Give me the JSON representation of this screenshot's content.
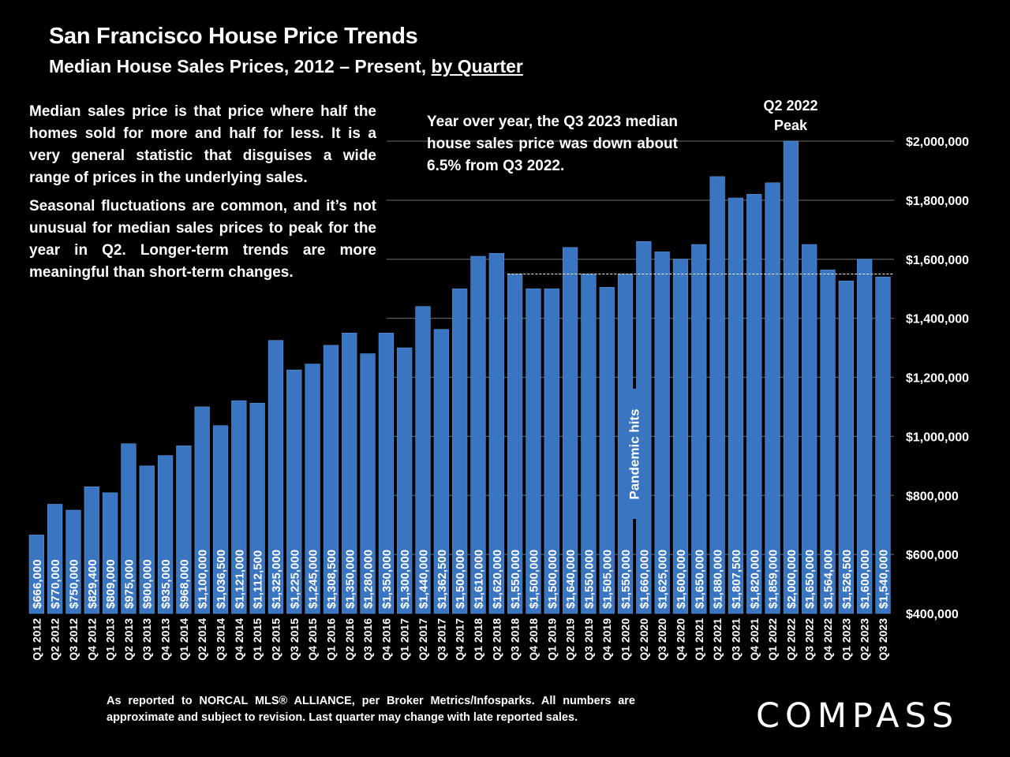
{
  "title": "San Francisco House Price Trends",
  "subtitle": {
    "main": "Median House Sales Prices, 2012 – Present, ",
    "link": "by Quarter"
  },
  "notes": {
    "definition": "Median sales price is that price where half the homes sold for more and half for less. It is a very general statistic that disguises a wide range of prices in the underlying sales.",
    "seasonal": "Seasonal fluctuations are common, and it’s not unusual for median sales prices to peak for the year in Q2. Longer-term trends are more meaningful than short-term changes.",
    "yoy": "Year over year, the Q3 2023 median house sales price was down about 6.5% from Q3 2022."
  },
  "annotations": {
    "peak_line1": "Q2 2022",
    "peak_line2": "Peak",
    "pandemic": "Pandemic hits"
  },
  "footnote": "As reported to NORCAL MLS® ALLIANCE, per Broker Metrics/Infosparks. All numbers are approximate and subject to revision. Last quarter may change with late reported sales.",
  "brand": "COMPASS",
  "colors": {
    "background": "#000000",
    "bar": "#3a75c2",
    "bar_edge": "#5b93d8",
    "grid": "#5a5a5a",
    "reference_line": "#ffffff",
    "text": "#ffffff"
  },
  "chart_data": {
    "type": "bar",
    "title": "San Francisco House Price Trends",
    "subtitle": "Median House Sales Prices, 2012 – Present, by Quarter",
    "xlabel": "",
    "ylabel": "",
    "ylim": [
      400000,
      2000000
    ],
    "yticks": [
      400000,
      600000,
      800000,
      1000000,
      1200000,
      1400000,
      1600000,
      1800000,
      2000000
    ],
    "ytick_labels": [
      "$400,000",
      "$600,000",
      "$800,000",
      "$1,000,000",
      "$1,200,000",
      "$1,400,000",
      "$1,600,000",
      "$1,800,000",
      "$2,000,000"
    ],
    "grid": true,
    "y_axis_side": "right",
    "reference_line": {
      "value": 1550000,
      "from_category": "Q3 2018",
      "style": "dashed"
    },
    "categories": [
      "Q1 2012",
      "Q2 2012",
      "Q3 2012",
      "Q4 2012",
      "Q1 2013",
      "Q2 2013",
      "Q3 2013",
      "Q4 2013",
      "Q1 2014",
      "Q2 2014",
      "Q3 2014",
      "Q4 2014",
      "Q1 2015",
      "Q2 2015",
      "Q3 2015",
      "Q4 2015",
      "Q1 2016",
      "Q2 2016",
      "Q3 2016",
      "Q4 2016",
      "Q1 2017",
      "Q2 2017",
      "Q3 2017",
      "Q4 2017",
      "Q1 2018",
      "Q2 2018",
      "Q3 2018",
      "Q4 2018",
      "Q1 2019",
      "Q2 2019",
      "Q3 2019",
      "Q4 2019",
      "Q1 2020",
      "Q2 2020",
      "Q3 2020",
      "Q4 2020",
      "Q1 2021",
      "Q2 2021",
      "Q3 2021",
      "Q4 2021",
      "Q1 2022",
      "Q2 2022",
      "Q3 2022",
      "Q4 2022",
      "Q1 2023",
      "Q2 2023",
      "Q3 2023"
    ],
    "values": [
      666000,
      770000,
      750000,
      829400,
      809000,
      975000,
      900000,
      935000,
      968000,
      1100000,
      1036500,
      1121000,
      1112500,
      1325000,
      1225000,
      1245000,
      1308500,
      1350000,
      1280000,
      1350000,
      1300000,
      1440000,
      1362500,
      1500000,
      1610000,
      1620000,
      1550000,
      1500000,
      1500000,
      1640000,
      1550000,
      1505000,
      1550000,
      1660000,
      1625000,
      1600000,
      1650000,
      1880000,
      1807500,
      1820000,
      1859000,
      2000000,
      1650000,
      1564000,
      1526500,
      1600000,
      1540000
    ],
    "data_labels": [
      "$666,000",
      "$770,000",
      "$750,000",
      "$829,400",
      "$809,000",
      "$975,000",
      "$900,000",
      "$935,000",
      "$968,000",
      "$1,100,000",
      "$1,036,500",
      "$1,121,000",
      "$1,112,500",
      "$1,325,000",
      "$1,225,000",
      "$1,245,000",
      "$1,308,500",
      "$1,350,000",
      "$1,280,000",
      "$1,350,000",
      "$1,300,000",
      "$1,440,000",
      "$1,362,500",
      "$1,500,000",
      "$1,610,000",
      "$1,620,000",
      "$1,550,000",
      "$1,500,000",
      "$1,500,000",
      "$1,640,000",
      "$1,550,000",
      "$1,505,000",
      "$1,550,000",
      "$1,660,000",
      "$1,625,000",
      "$1,600,000",
      "$1,650,000",
      "$1,880,000",
      "$1,807,500",
      "$1,820,000",
      "$1,859,000",
      "$2,000,000",
      "$1,650,000",
      "$1,564,000",
      "$1,526,500",
      "$1,600,000",
      "$1,540,000"
    ]
  }
}
